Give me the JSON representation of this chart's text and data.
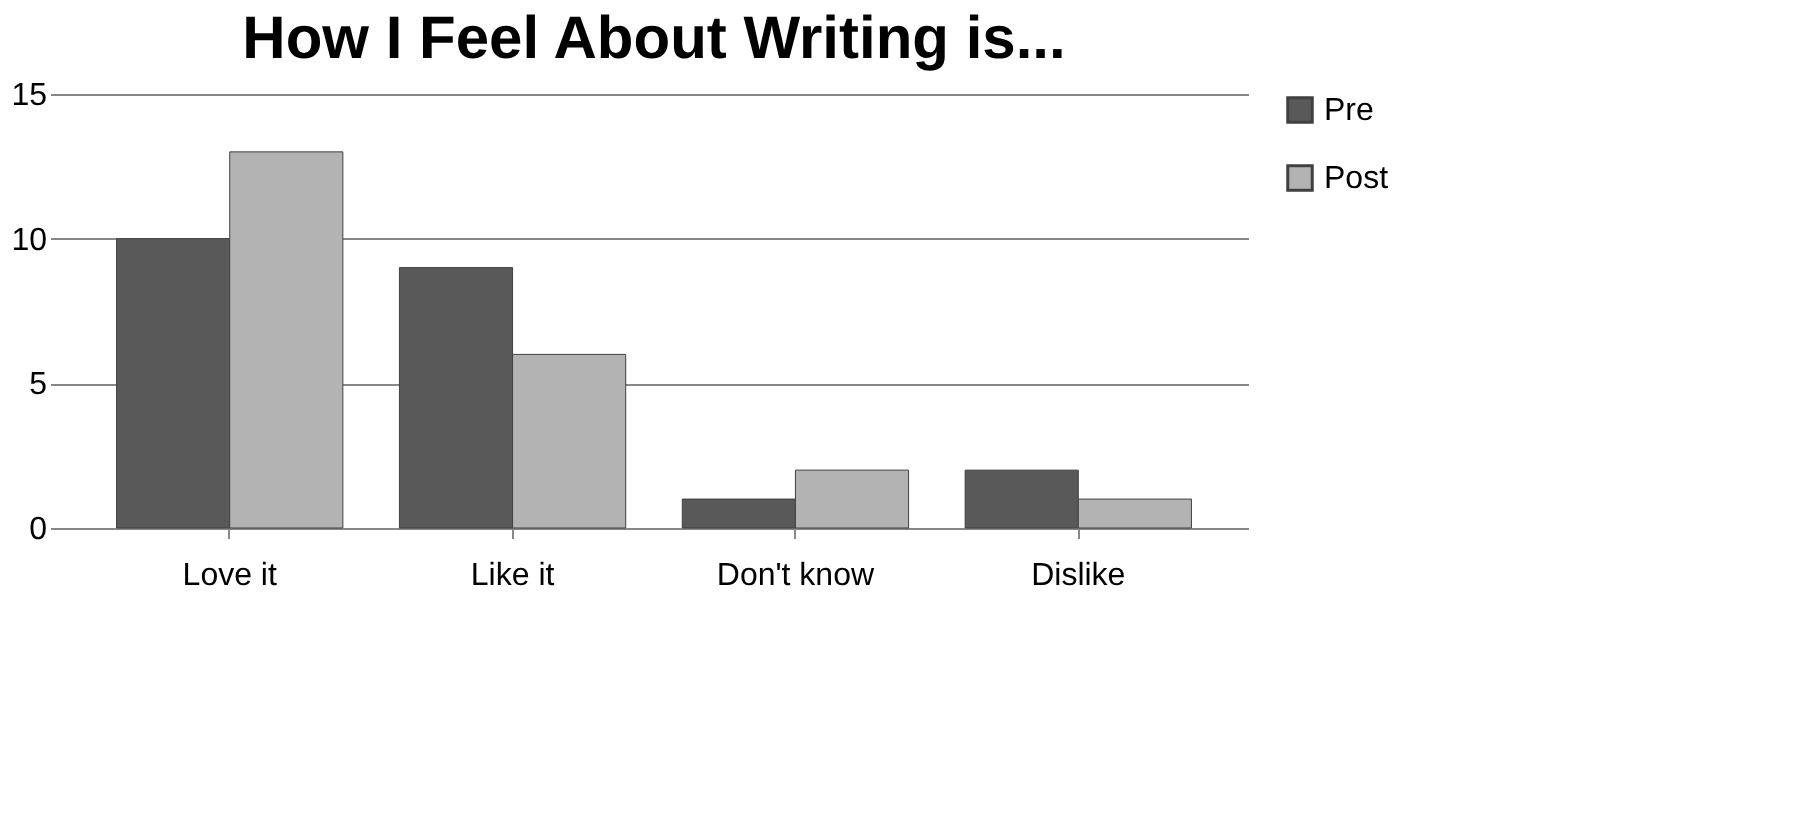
{
  "chart_data": {
    "type": "bar",
    "title": "How I Feel About Writing is...",
    "categories": [
      "Love it",
      "Like it",
      "Don't know",
      "Dislike"
    ],
    "series": [
      {
        "name": "Pre",
        "color": "#595959",
        "values": [
          10,
          9,
          1,
          2
        ]
      },
      {
        "name": "Post",
        "color": "#b3b3b3",
        "values": [
          13,
          6,
          2,
          1
        ]
      }
    ],
    "ylim": [
      0,
      15
    ],
    "yticks": [
      0,
      5,
      10,
      15
    ],
    "grid": "y",
    "legend": "right"
  }
}
